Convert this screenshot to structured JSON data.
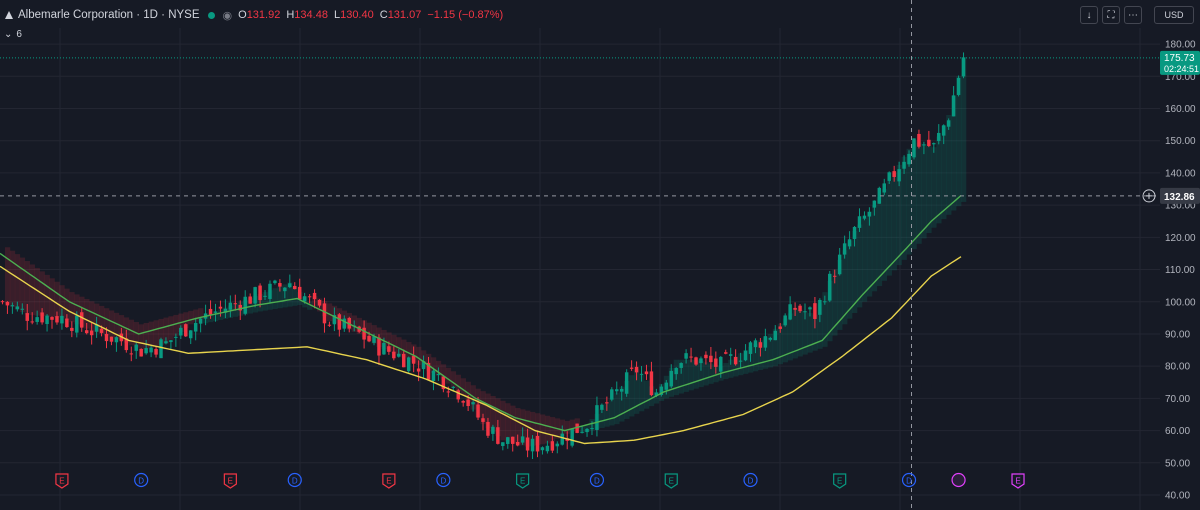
{
  "header": {
    "title": "Albemarle Corporation · 1D · NYSE",
    "open_label": "O",
    "open": "131.92",
    "high_label": "H",
    "high": "134.48",
    "low_label": "L",
    "low": "130.40",
    "close_label": "C",
    "close": "131.07",
    "change": "−1.15 (−0.87%)",
    "indicator_count": "6",
    "currency": "USD"
  },
  "price_label": {
    "value": "175.73",
    "countdown": "02:24:51"
  },
  "crosshair_label": "132.86",
  "colors": {
    "up": "#089981",
    "down": "#f23645",
    "ma_fast": "#4caf50",
    "ma_slow": "#e8d44d",
    "background": "#161a25",
    "grid": "#232632"
  },
  "chart_data": {
    "type": "candlestick",
    "symbol": "Albemarle Corporation · 1D · NYSE",
    "ylim": [
      40,
      185
    ],
    "y_ticks": [
      40,
      50,
      60,
      70,
      80,
      90,
      100,
      110,
      120,
      130,
      140,
      150,
      160,
      170,
      180
    ],
    "y_tick_labels": [
      "40.00",
      "50.00",
      "60.00",
      "70.00",
      "80.00",
      "90.00",
      "100.00",
      "110.00",
      "120.00",
      "130.00",
      "140.00",
      "150.00",
      "160.00",
      "170.00",
      "180.00"
    ],
    "approx_close_path": [
      [
        0,
        100
      ],
      [
        5,
        96
      ],
      [
        12,
        95
      ],
      [
        18,
        91
      ],
      [
        24,
        88
      ],
      [
        28,
        85
      ],
      [
        33,
        87
      ],
      [
        38,
        93
      ],
      [
        43,
        97
      ],
      [
        48,
        100
      ],
      [
        53,
        103
      ],
      [
        58,
        106
      ],
      [
        62,
        100
      ],
      [
        66,
        94
      ],
      [
        72,
        90
      ],
      [
        76,
        86
      ],
      [
        82,
        82
      ],
      [
        88,
        77
      ],
      [
        93,
        71
      ],
      [
        97,
        62
      ],
      [
        101,
        57
      ],
      [
        106,
        55
      ],
      [
        110,
        56
      ],
      [
        114,
        59
      ],
      [
        118,
        62
      ],
      [
        123,
        70
      ],
      [
        128,
        79
      ],
      [
        132,
        72
      ],
      [
        136,
        82
      ],
      [
        140,
        82
      ],
      [
        145,
        80
      ],
      [
        150,
        85
      ],
      [
        155,
        90
      ],
      [
        160,
        98
      ],
      [
        164,
        96
      ],
      [
        168,
        110
      ],
      [
        172,
        122
      ],
      [
        176,
        130
      ],
      [
        180,
        140
      ],
      [
        184,
        150
      ],
      [
        188,
        148
      ],
      [
        191,
        158
      ],
      [
        193,
        170
      ],
      [
        194,
        176
      ]
    ],
    "ma_fast": [
      [
        0,
        115
      ],
      [
        14,
        100
      ],
      [
        28,
        90
      ],
      [
        40,
        95
      ],
      [
        52,
        99
      ],
      [
        60,
        101
      ],
      [
        72,
        92
      ],
      [
        84,
        83
      ],
      [
        96,
        70
      ],
      [
        104,
        64
      ],
      [
        114,
        60
      ],
      [
        124,
        64
      ],
      [
        134,
        72
      ],
      [
        146,
        78
      ],
      [
        156,
        82
      ],
      [
        166,
        88
      ],
      [
        174,
        102
      ],
      [
        182,
        115
      ],
      [
        188,
        125
      ],
      [
        194,
        133
      ]
    ],
    "ma_slow": [
      [
        0,
        111
      ],
      [
        14,
        97
      ],
      [
        26,
        88
      ],
      [
        38,
        84
      ],
      [
        50,
        85
      ],
      [
        62,
        86
      ],
      [
        74,
        82
      ],
      [
        86,
        76
      ],
      [
        98,
        68
      ],
      [
        108,
        60
      ],
      [
        118,
        56
      ],
      [
        128,
        57
      ],
      [
        138,
        60
      ],
      [
        150,
        65
      ],
      [
        160,
        72
      ],
      [
        170,
        83
      ],
      [
        180,
        95
      ],
      [
        188,
        108
      ],
      [
        194,
        114
      ]
    ],
    "events": [
      {
        "type": "E",
        "kind": "earnings-negative",
        "index": 12
      },
      {
        "type": "D",
        "kind": "dividend",
        "index": 28
      },
      {
        "type": "E",
        "kind": "earnings-negative",
        "index": 46
      },
      {
        "type": "D",
        "kind": "dividend",
        "index": 59
      },
      {
        "type": "E",
        "kind": "earnings-negative",
        "index": 78
      },
      {
        "type": "D",
        "kind": "dividend",
        "index": 89
      },
      {
        "type": "E",
        "kind": "earnings-positive",
        "index": 105
      },
      {
        "type": "D",
        "kind": "dividend",
        "index": 120
      },
      {
        "type": "E",
        "kind": "earnings-positive",
        "index": 135
      },
      {
        "type": "D",
        "kind": "dividend",
        "index": 151
      },
      {
        "type": "E",
        "kind": "earnings-positive",
        "index": 169
      },
      {
        "type": "D",
        "kind": "dividend",
        "index": 183
      },
      {
        "type": "S",
        "kind": "split-event",
        "index": 193
      },
      {
        "type": "E",
        "kind": "earnings-upcoming",
        "index": 205
      }
    ],
    "crosshair": {
      "price": 132.86,
      "index": 184
    }
  }
}
